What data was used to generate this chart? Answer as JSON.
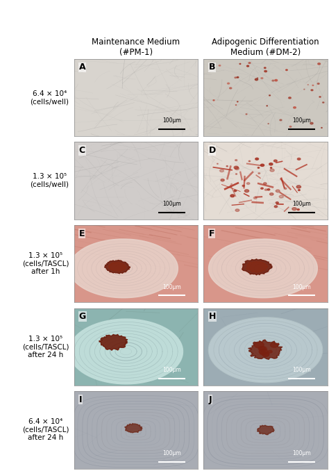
{
  "figure_width": 4.74,
  "figure_height": 6.78,
  "dpi": 100,
  "bg_color": "#ffffff",
  "col_headers": [
    "Maintenance Medium\n(#PM-1)",
    "Adipogenic Differentiation\nMedium (#DM-2)"
  ],
  "row_labels": [
    "6.4 × 10⁴\n(cells/well)",
    "1.3 × 10⁵\n(cells/well)",
    "1.3 × 10⁵\n(cells/TASCL)\nafter 1h",
    "1.3 × 10⁵\n(cells/TASCL)\nafter 24 h",
    "6.4 × 10⁴\n(cells/TASCL)\nafter 24 h"
  ],
  "panel_labels": [
    "A",
    "B",
    "C",
    "D",
    "E",
    "F",
    "G",
    "H",
    "I",
    "J"
  ],
  "header_fontsize": 8.5,
  "label_fontsize": 7.5,
  "panel_letter_fontsize": 9,
  "scale_bar_text": "100μm"
}
